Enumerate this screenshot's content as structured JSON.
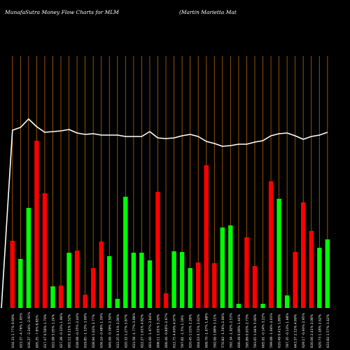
{
  "header": {
    "title": "MunafaSutra  Money Flow  Charts for MLM",
    "subtitle": "(Martin  Marietta  Mat"
  },
  "colors": {
    "background": "#000000",
    "grid": "#b8650a",
    "up": "#00ff00",
    "down": "#ff0000",
    "line": "#ffffff",
    "text": "#ffffff"
  },
  "chart_data": {
    "type": "bar",
    "title": "",
    "xlabel": "",
    "ylabel": "",
    "grid": true,
    "categories": [
      "634.33 1.77% 0.69%",
      "623.37 -4.76% 1.95%",
      "636.37 -3.24% -2.91%",
      "605.35 -7.8% 8.85%",
      "617.47 0.58% 1.70%",
      "622.08 5.05% 1.24%",
      "627.28 -0.23% 1.96%",
      "602.11 0.11% 3.52%",
      "618.08 -0.35% 2.44%",
      "619.85 -1.53% 3.09%",
      "628.94 1.62% 2.77%",
      "636.16 -0.48% 1.59%",
      "646.06 -0.39% 2.50%",
      "633.25 0.11% 2.06%",
      "620.32 1.27% 3.87%",
      "631.58 -1.77% 3.08%",
      "622.27 1.61% 4.82%",
      "601.00 -1.97% 2.64%",
      "608.11 1.01% 5.30%",
      "606.46 -0.86% 2.67%",
      "612.75 4.49% 4.97%",
      "597.81 -1.5% 1.19%",
      "620.45 1.03% 2.28%",
      "604.03 0.72% 2.63%",
      "609.70 -1.97% 1.68%",
      "592.06 1.88% 3.11%",
      "576.82 -1.56% 2.06%",
      "592.34 -1.92% 2.53%",
      "600.49 0.09% 1.44%",
      "595.89 0.93% 2.73%",
      "593.65 1.94% 5.00%",
      "605.91 -0.14% 3.22%",
      "599.08 -1.04% 4.03%",
      "610.49 0.41% 1.89%",
      "597.35 -0.13% 1.68%",
      "643.37 2.12% 4.69%",
      "629.17 -0.93% 2.95%",
      "630.06 2.41% 2.08%",
      "620.73 1.18% 2.62%",
      "633.82 1.57% 3.42%"
    ],
    "bar_colors": [
      "red",
      "green",
      "green",
      "red",
      "red",
      "green",
      "red",
      "green",
      "red",
      "red",
      "red",
      "red",
      "green",
      "green",
      "green",
      "green",
      "green",
      "green",
      "red",
      "red",
      "green",
      "green",
      "green",
      "red",
      "red",
      "red",
      "green",
      "green",
      "green",
      "red",
      "red",
      "green",
      "red",
      "green",
      "green",
      "red",
      "red",
      "red",
      "green",
      "green"
    ],
    "values": [
      96,
      70,
      143,
      239,
      164,
      31,
      32,
      79,
      82,
      19,
      57,
      95,
      74,
      13,
      159,
      79,
      79,
      68,
      166,
      21,
      81,
      80,
      57,
      65,
      204,
      64,
      115,
      118,
      6,
      101,
      60,
      6,
      181,
      156,
      18,
      80,
      151,
      110,
      86,
      98
    ],
    "line_values": [
      254,
      258,
      270,
      259,
      251,
      252,
      253,
      255,
      250,
      248,
      249,
      247,
      247,
      247,
      245,
      245,
      245,
      252,
      243,
      242,
      243,
      246,
      248,
      245,
      238,
      235,
      231,
      232,
      234,
      234,
      237,
      239,
      246,
      249,
      250,
      246,
      241,
      245,
      247,
      251
    ],
    "ylim": [
      0,
      360
    ]
  }
}
